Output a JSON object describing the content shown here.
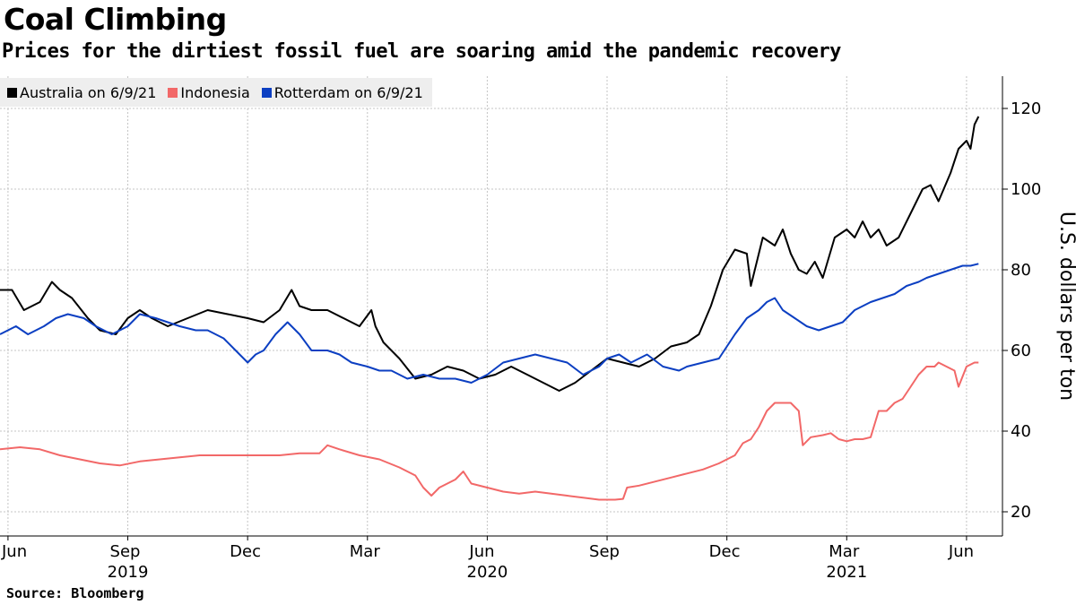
{
  "title": "Coal Climbing",
  "subtitle": "Prices for the dirtiest fossil fuel are soaring amid the pandemic recovery",
  "source": "Source: Bloomberg",
  "legend": [
    {
      "label": "Australia on 6/9/21",
      "color": "#000000"
    },
    {
      "label": "Indonesia",
      "color": "#f26868"
    },
    {
      "label": "Rotterdam on 6/9/21",
      "color": "#0c3fc2"
    }
  ],
  "chart_data": {
    "type": "line",
    "title": "Coal Climbing",
    "ylabel": "U.S. dollars per ton",
    "ylim": [
      14,
      128
    ],
    "yticks": [
      20,
      40,
      60,
      80,
      100,
      120
    ],
    "xlim": [
      -0.2,
      24.9
    ],
    "grid": true,
    "legend_position": "top-left",
    "xticks": [
      {
        "label": "Jun",
        "x": 0
      },
      {
        "label": "Sep",
        "x": 3
      },
      {
        "label": "Dec",
        "x": 6
      },
      {
        "label": "Mar",
        "x": 9
      },
      {
        "label": "Jun",
        "x": 12
      },
      {
        "label": "Sep",
        "x": 15
      },
      {
        "label": "Dec",
        "x": 18
      },
      {
        "label": "Mar",
        "x": 21
      },
      {
        "label": "Jun",
        "x": 24
      }
    ],
    "year_labels": [
      {
        "label": "2019",
        "x": 3
      },
      {
        "label": "2020",
        "x": 12
      },
      {
        "label": "2021",
        "x": 21
      }
    ],
    "x_unit": "months since Jun 2019",
    "series": [
      {
        "name": "Australia on 6/9/21",
        "color": "#000000",
        "points": [
          [
            -0.2,
            75
          ],
          [
            0.1,
            75
          ],
          [
            0.4,
            70
          ],
          [
            0.8,
            72
          ],
          [
            1.1,
            77
          ],
          [
            1.3,
            75
          ],
          [
            1.6,
            73
          ],
          [
            2.0,
            68
          ],
          [
            2.3,
            65
          ],
          [
            2.7,
            64
          ],
          [
            3.0,
            68
          ],
          [
            3.3,
            70
          ],
          [
            3.6,
            68
          ],
          [
            4.0,
            66
          ],
          [
            4.5,
            68
          ],
          [
            5.0,
            70
          ],
          [
            5.5,
            69
          ],
          [
            6.0,
            68
          ],
          [
            6.4,
            67
          ],
          [
            6.8,
            70
          ],
          [
            7.1,
            75
          ],
          [
            7.3,
            71
          ],
          [
            7.6,
            70
          ],
          [
            8.0,
            70
          ],
          [
            8.4,
            68
          ],
          [
            8.8,
            66
          ],
          [
            9.1,
            70
          ],
          [
            9.2,
            66
          ],
          [
            9.4,
            62
          ],
          [
            9.8,
            58
          ],
          [
            10.2,
            53
          ],
          [
            10.6,
            54
          ],
          [
            11.0,
            56
          ],
          [
            11.4,
            55
          ],
          [
            11.8,
            53
          ],
          [
            12.2,
            54
          ],
          [
            12.6,
            56
          ],
          [
            13.0,
            54
          ],
          [
            13.4,
            52
          ],
          [
            13.8,
            50
          ],
          [
            14.2,
            52
          ],
          [
            14.6,
            55
          ],
          [
            15.0,
            58
          ],
          [
            15.4,
            57
          ],
          [
            15.8,
            56
          ],
          [
            16.2,
            58
          ],
          [
            16.6,
            61
          ],
          [
            17.0,
            62
          ],
          [
            17.3,
            64
          ],
          [
            17.6,
            71
          ],
          [
            17.9,
            80
          ],
          [
            18.2,
            85
          ],
          [
            18.5,
            84
          ],
          [
            18.6,
            76
          ],
          [
            18.9,
            88
          ],
          [
            19.2,
            86
          ],
          [
            19.4,
            90
          ],
          [
            19.6,
            84
          ],
          [
            19.8,
            80
          ],
          [
            20.0,
            79
          ],
          [
            20.2,
            82
          ],
          [
            20.4,
            78
          ],
          [
            20.7,
            88
          ],
          [
            21.0,
            90
          ],
          [
            21.2,
            88
          ],
          [
            21.4,
            92
          ],
          [
            21.6,
            88
          ],
          [
            21.8,
            90
          ],
          [
            22.0,
            86
          ],
          [
            22.3,
            88
          ],
          [
            22.6,
            94
          ],
          [
            22.9,
            100
          ],
          [
            23.1,
            101
          ],
          [
            23.3,
            97
          ],
          [
            23.6,
            104
          ],
          [
            23.8,
            110
          ],
          [
            24.0,
            112
          ],
          [
            24.1,
            110
          ],
          [
            24.2,
            116
          ],
          [
            24.3,
            118
          ]
        ]
      },
      {
        "name": "Indonesia",
        "color": "#f26868",
        "points": [
          [
            -0.2,
            35.5
          ],
          [
            0.3,
            36
          ],
          [
            0.8,
            35.5
          ],
          [
            1.3,
            34
          ],
          [
            1.8,
            33
          ],
          [
            2.3,
            32
          ],
          [
            2.8,
            31.5
          ],
          [
            3.3,
            32.5
          ],
          [
            3.8,
            33
          ],
          [
            4.3,
            33.5
          ],
          [
            4.8,
            34
          ],
          [
            5.3,
            34
          ],
          [
            5.8,
            34
          ],
          [
            6.3,
            34
          ],
          [
            6.8,
            34
          ],
          [
            7.3,
            34.5
          ],
          [
            7.8,
            34.5
          ],
          [
            8.0,
            36.5
          ],
          [
            8.3,
            35.5
          ],
          [
            8.8,
            34
          ],
          [
            9.3,
            33
          ],
          [
            9.8,
            31
          ],
          [
            10.2,
            29
          ],
          [
            10.4,
            26
          ],
          [
            10.6,
            24
          ],
          [
            10.8,
            26
          ],
          [
            11.2,
            28
          ],
          [
            11.4,
            30
          ],
          [
            11.6,
            27
          ],
          [
            12.0,
            26
          ],
          [
            12.4,
            25
          ],
          [
            12.8,
            24.5
          ],
          [
            13.2,
            25
          ],
          [
            13.6,
            24.5
          ],
          [
            14.0,
            24
          ],
          [
            14.4,
            23.5
          ],
          [
            14.8,
            23
          ],
          [
            15.2,
            23
          ],
          [
            15.4,
            23.2
          ],
          [
            15.5,
            26
          ],
          [
            15.8,
            26.5
          ],
          [
            16.2,
            27.5
          ],
          [
            16.6,
            28.5
          ],
          [
            17.0,
            29.5
          ],
          [
            17.4,
            30.5
          ],
          [
            17.8,
            32
          ],
          [
            18.2,
            34
          ],
          [
            18.4,
            37
          ],
          [
            18.6,
            38
          ],
          [
            18.8,
            41
          ],
          [
            19.0,
            45
          ],
          [
            19.2,
            47
          ],
          [
            19.4,
            47
          ],
          [
            19.6,
            47
          ],
          [
            19.8,
            45
          ],
          [
            19.9,
            36.5
          ],
          [
            20.1,
            38.5
          ],
          [
            20.4,
            39
          ],
          [
            20.6,
            39.5
          ],
          [
            20.8,
            38
          ],
          [
            21.0,
            37.5
          ],
          [
            21.2,
            38
          ],
          [
            21.4,
            38
          ],
          [
            21.6,
            38.5
          ],
          [
            21.8,
            45
          ],
          [
            22.0,
            45
          ],
          [
            22.2,
            47
          ],
          [
            22.4,
            48
          ],
          [
            22.6,
            51
          ],
          [
            22.8,
            54
          ],
          [
            23.0,
            56
          ],
          [
            23.2,
            56
          ],
          [
            23.3,
            57
          ],
          [
            23.5,
            56
          ],
          [
            23.7,
            55
          ],
          [
            23.8,
            51
          ],
          [
            24.0,
            56
          ],
          [
            24.2,
            57
          ],
          [
            24.3,
            57
          ]
        ]
      },
      {
        "name": "Rotterdam on 6/9/21",
        "color": "#0c3fc2",
        "points": [
          [
            -0.2,
            64
          ],
          [
            0.2,
            66
          ],
          [
            0.5,
            64
          ],
          [
            0.9,
            66
          ],
          [
            1.2,
            68
          ],
          [
            1.5,
            69
          ],
          [
            1.9,
            68
          ],
          [
            2.2,
            66
          ],
          [
            2.6,
            64
          ],
          [
            3.0,
            66
          ],
          [
            3.3,
            69
          ],
          [
            3.7,
            68
          ],
          [
            4.0,
            67
          ],
          [
            4.3,
            66
          ],
          [
            4.7,
            65
          ],
          [
            5.0,
            65
          ],
          [
            5.4,
            63
          ],
          [
            5.7,
            60
          ],
          [
            6.0,
            57
          ],
          [
            6.2,
            59
          ],
          [
            6.4,
            60
          ],
          [
            6.7,
            64
          ],
          [
            7.0,
            67
          ],
          [
            7.3,
            64
          ],
          [
            7.6,
            60
          ],
          [
            8.0,
            60
          ],
          [
            8.3,
            59
          ],
          [
            8.6,
            57
          ],
          [
            9.0,
            56
          ],
          [
            9.3,
            55
          ],
          [
            9.6,
            55
          ],
          [
            10.0,
            53
          ],
          [
            10.4,
            54
          ],
          [
            10.8,
            53
          ],
          [
            11.2,
            53
          ],
          [
            11.6,
            52
          ],
          [
            12.0,
            54
          ],
          [
            12.4,
            57
          ],
          [
            12.8,
            58
          ],
          [
            13.2,
            59
          ],
          [
            13.6,
            58
          ],
          [
            14.0,
            57
          ],
          [
            14.4,
            54
          ],
          [
            14.8,
            56
          ],
          [
            15.0,
            58
          ],
          [
            15.3,
            59
          ],
          [
            15.6,
            57
          ],
          [
            16.0,
            59
          ],
          [
            16.4,
            56
          ],
          [
            16.8,
            55
          ],
          [
            17.0,
            56
          ],
          [
            17.4,
            57
          ],
          [
            17.8,
            58
          ],
          [
            18.0,
            61
          ],
          [
            18.2,
            64
          ],
          [
            18.5,
            68
          ],
          [
            18.8,
            70
          ],
          [
            19.0,
            72
          ],
          [
            19.2,
            73
          ],
          [
            19.4,
            70
          ],
          [
            19.7,
            68
          ],
          [
            20.0,
            66
          ],
          [
            20.3,
            65
          ],
          [
            20.6,
            66
          ],
          [
            20.9,
            67
          ],
          [
            21.2,
            70
          ],
          [
            21.6,
            72
          ],
          [
            21.9,
            73
          ],
          [
            22.2,
            74
          ],
          [
            22.5,
            76
          ],
          [
            22.8,
            77
          ],
          [
            23.0,
            78
          ],
          [
            23.3,
            79
          ],
          [
            23.6,
            80
          ],
          [
            23.9,
            81
          ],
          [
            24.1,
            81
          ],
          [
            24.3,
            81.5
          ]
        ]
      }
    ]
  }
}
